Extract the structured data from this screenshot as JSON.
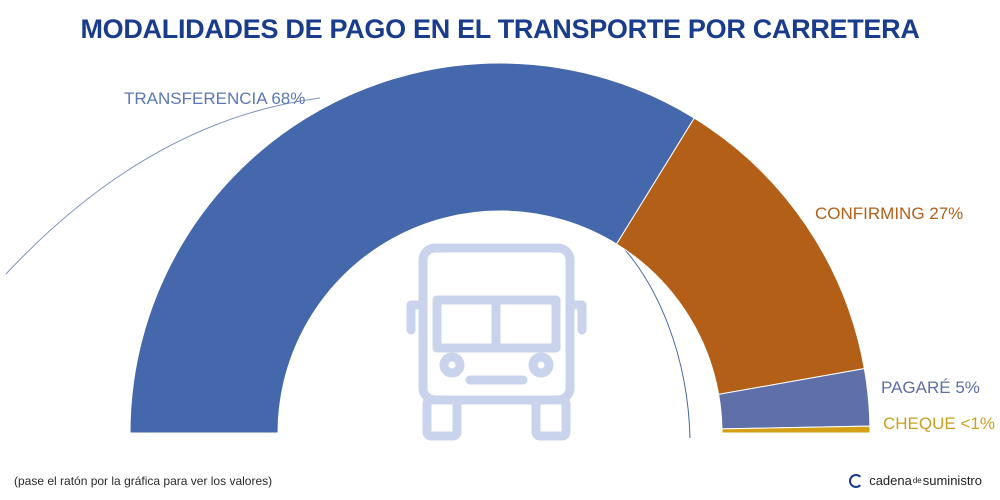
{
  "chart_data": {
    "type": "pie",
    "variant": "semi-donut",
    "title": "MODALIDADES DE PAGO EN EL TRANSPORTE POR CARRETERA",
    "slices": [
      {
        "label": "TRANSFERENCIA 68%",
        "name": "TRANSFERENCIA",
        "value": 68,
        "color": "#4468ab"
      },
      {
        "label": "CONFIRMING 27%",
        "name": "CONFIRMING",
        "value": 27,
        "color": "#b35f17"
      },
      {
        "label": "PAGARÉ 5%",
        "name": "PAGARÉ",
        "value": 5,
        "color": "#5f6fa7"
      },
      {
        "label": "CHEQUE <1%",
        "name": "CHEQUE",
        "value": 0.6,
        "color": "#d4a016"
      }
    ],
    "label_colors": [
      "#5b78b4",
      "#b35f17",
      "#5f6fa7",
      "#c9a020"
    ],
    "center_icon": "truck-icon"
  },
  "footnote": "(pase el ratón por la gráfica para ver los valores)",
  "brand": {
    "part1": "cadena",
    "part2": "de",
    "part3": "suministro"
  }
}
